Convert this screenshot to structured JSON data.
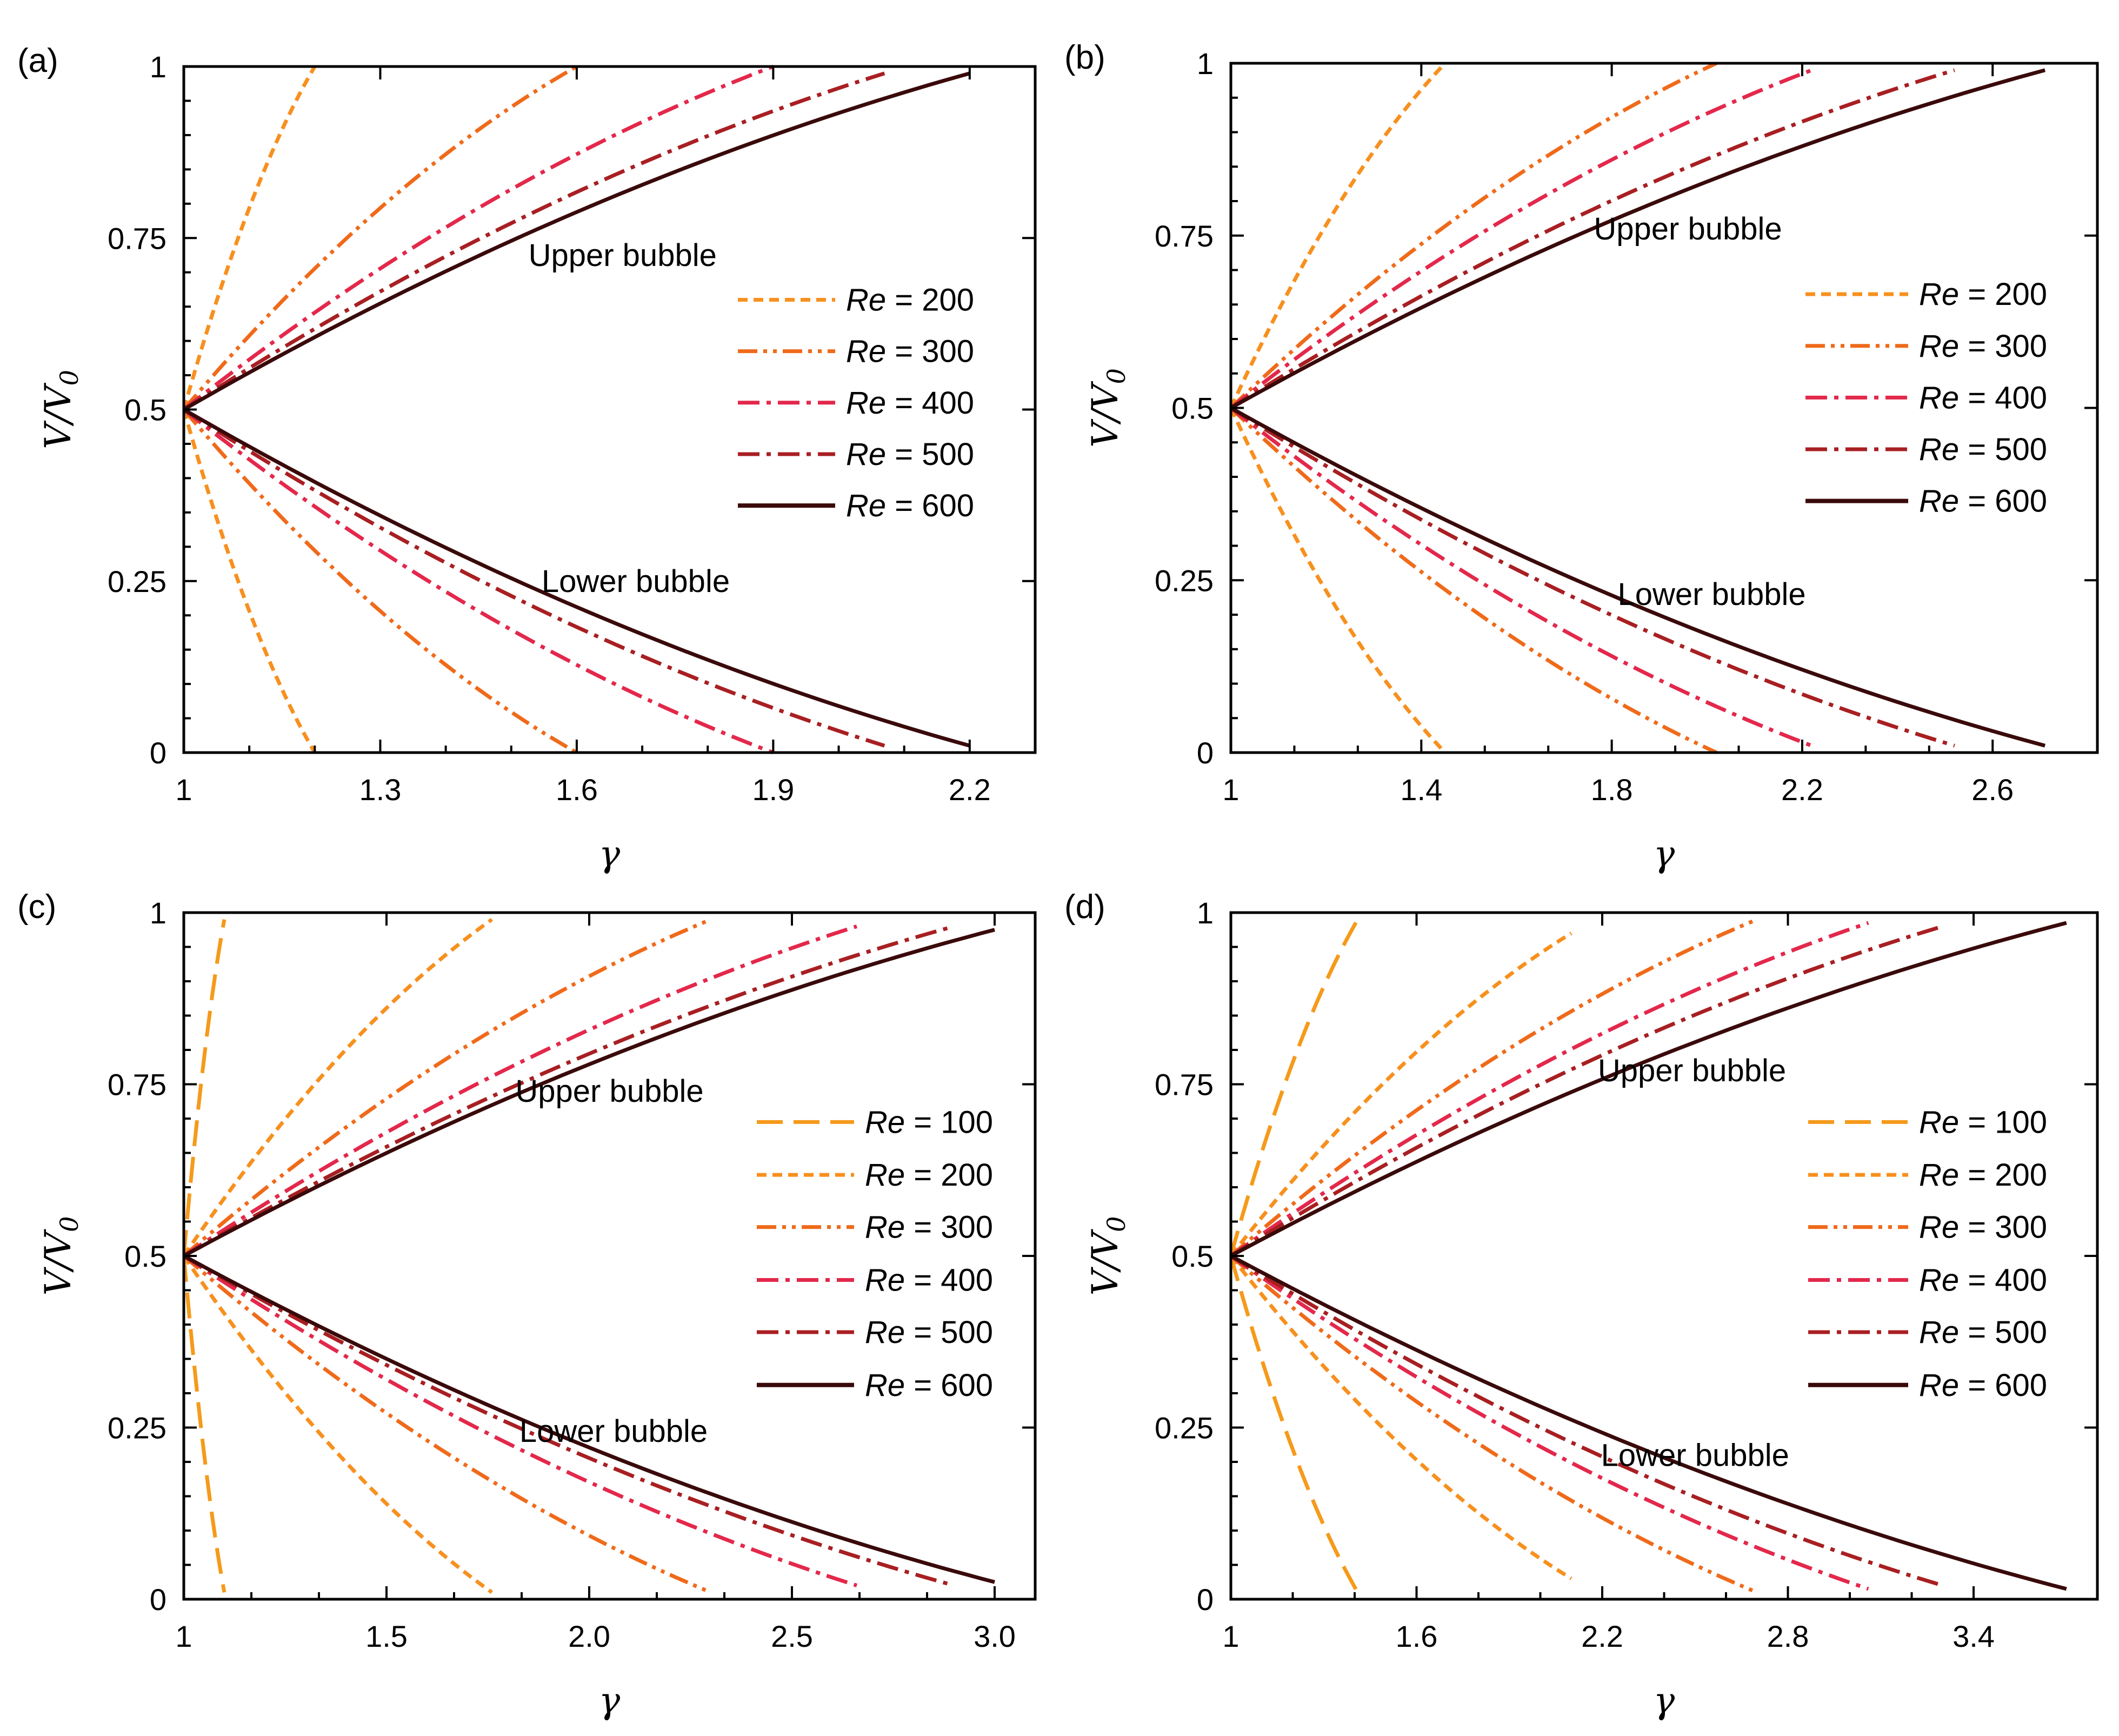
{
  "colors": {
    "Re100": "#f59a1a",
    "Re200": "#f7901e",
    "Re300": "#ef6a1a",
    "Re400": "#e3284b",
    "Re500": "#a81f22",
    "Re600": "#3a0a0a"
  },
  "chart_data": [
    {
      "type": "line",
      "panel_label": "(a)",
      "xlabel": "γ",
      "ylabel": "V/V",
      "ylabel_sub": "0",
      "xlim": [
        1,
        2.3
      ],
      "ylim": [
        0,
        1
      ],
      "xticks": [
        1,
        1.3,
        1.6,
        1.9,
        2.2
      ],
      "xtick_labels": [
        "1",
        "1.3",
        "1.6",
        "1.9",
        "2.2"
      ],
      "yticks": [
        0,
        0.25,
        0.5,
        0.75,
        1
      ],
      "ytick_labels": [
        "0",
        "0.25",
        "0.5",
        "0.75",
        "1"
      ],
      "annotations": [
        {
          "text": "Upper bubble",
          "x": 1.67,
          "y": 0.725
        },
        {
          "text": "Lower bubble",
          "x": 1.69,
          "y": 0.25
        }
      ],
      "legend": {
        "position": "center-right",
        "row_y": [
          0.66,
          0.585,
          0.51,
          0.435,
          0.36
        ]
      },
      "series": [
        {
          "name": "Re = 200",
          "color_key": "Re200",
          "dash": "dash",
          "gamma_end": 1.2,
          "v_end": 1.0
        },
        {
          "name": "Re = 300",
          "color_key": "Re300",
          "dash": "dashdotdot",
          "gamma_end": 1.6,
          "v_end": 1.0
        },
        {
          "name": "Re = 400",
          "color_key": "Re400",
          "dash": "dashdot",
          "gamma_end": 1.9,
          "v_end": 1.0
        },
        {
          "name": "Re = 500",
          "color_key": "Re500",
          "dash": "dashdot",
          "gamma_end": 2.07,
          "v_end": 0.99
        },
        {
          "name": "Re = 600",
          "color_key": "Re600",
          "dash": "solid",
          "gamma_end": 2.2,
          "v_end": 0.99
        }
      ]
    },
    {
      "type": "line",
      "panel_label": "(b)",
      "xlabel": "γ",
      "ylabel": "V/V",
      "ylabel_sub": "0",
      "xlim": [
        1,
        2.82
      ],
      "ylim": [
        0,
        1
      ],
      "xticks": [
        1,
        1.4,
        1.8,
        2.2,
        2.6
      ],
      "xtick_labels": [
        "1",
        "1.4",
        "1.8",
        "2.2",
        "2.6"
      ],
      "yticks": [
        0,
        0.25,
        0.5,
        0.75,
        1
      ],
      "ytick_labels": [
        "0",
        "0.25",
        "0.5",
        "0.75",
        "1"
      ],
      "annotations": [
        {
          "text": "Upper bubble",
          "x": 1.96,
          "y": 0.76
        },
        {
          "text": "Lower bubble",
          "x": 2.01,
          "y": 0.23
        }
      ],
      "legend": {
        "position": "center-right",
        "row_y": [
          0.665,
          0.59,
          0.515,
          0.44,
          0.365
        ]
      },
      "series": [
        {
          "name": "Re = 200",
          "color_key": "Re200",
          "dash": "dash",
          "gamma_end": 1.45,
          "v_end": 1.0
        },
        {
          "name": "Re = 300",
          "color_key": "Re300",
          "dash": "dashdotdot",
          "gamma_end": 2.02,
          "v_end": 1.0
        },
        {
          "name": "Re = 400",
          "color_key": "Re400",
          "dash": "dashdot",
          "gamma_end": 2.22,
          "v_end": 0.99
        },
        {
          "name": "Re = 500",
          "color_key": "Re500",
          "dash": "dashdot",
          "gamma_end": 2.52,
          "v_end": 0.99
        },
        {
          "name": "Re = 600",
          "color_key": "Re600",
          "dash": "solid",
          "gamma_end": 2.71,
          "v_end": 0.99
        }
      ]
    },
    {
      "type": "line",
      "panel_label": "(c)",
      "xlabel": "γ",
      "ylabel": "V/V",
      "ylabel_sub": "0",
      "xlim": [
        1,
        3.1
      ],
      "ylim": [
        0,
        1
      ],
      "xticks": [
        1,
        1.5,
        2.0,
        2.5,
        3.0
      ],
      "xtick_labels": [
        "1",
        "1.5",
        "2.0",
        "2.5",
        "3.0"
      ],
      "yticks": [
        0,
        0.25,
        0.5,
        0.75,
        1
      ],
      "ytick_labels": [
        "0",
        "0.25",
        "0.5",
        "0.75",
        "1"
      ],
      "annotations": [
        {
          "text": "Upper bubble",
          "x": 2.05,
          "y": 0.74
        },
        {
          "text": "Lower bubble",
          "x": 2.06,
          "y": 0.245
        }
      ],
      "legend": {
        "position": "center-right",
        "row_y": [
          0.695,
          0.618,
          0.542,
          0.465,
          0.389,
          0.312
        ]
      },
      "series": [
        {
          "name": "Re = 100",
          "color_key": "Re100",
          "dash": "longdash",
          "gamma_end": 1.1,
          "v_end": 0.99
        },
        {
          "name": "Re = 200",
          "color_key": "Re200",
          "dash": "dash",
          "gamma_end": 1.76,
          "v_end": 0.99
        },
        {
          "name": "Re = 300",
          "color_key": "Re300",
          "dash": "dashdotdot",
          "gamma_end": 2.3,
          "v_end": 0.99
        },
        {
          "name": "Re = 400",
          "color_key": "Re400",
          "dash": "dashdot",
          "gamma_end": 2.66,
          "v_end": 0.98
        },
        {
          "name": "Re = 500",
          "color_key": "Re500",
          "dash": "dashdot",
          "gamma_end": 2.9,
          "v_end": 0.98
        },
        {
          "name": "Re = 600",
          "color_key": "Re600",
          "dash": "solid",
          "gamma_end": 3.0,
          "v_end": 0.975
        }
      ]
    },
    {
      "type": "line",
      "panel_label": "(d)",
      "xlabel": "γ",
      "ylabel": "V/V",
      "ylabel_sub": "0",
      "xlim": [
        1,
        3.8
      ],
      "ylim": [
        0,
        1
      ],
      "xticks": [
        1,
        1.6,
        2.2,
        2.8,
        3.4
      ],
      "xtick_labels": [
        "1",
        "1.6",
        "2.2",
        "2.8",
        "3.4"
      ],
      "yticks": [
        0,
        0.25,
        0.5,
        0.75,
        1
      ],
      "ytick_labels": [
        "0",
        "0.25",
        "0.5",
        "0.75",
        "1"
      ],
      "annotations": [
        {
          "text": "Upper bubble",
          "x": 2.49,
          "y": 0.77
        },
        {
          "text": "Lower bubble",
          "x": 2.5,
          "y": 0.21
        }
      ],
      "legend": {
        "position": "center-right",
        "row_y": [
          0.695,
          0.618,
          0.542,
          0.465,
          0.389,
          0.312
        ]
      },
      "series": [
        {
          "name": "Re = 100",
          "color_key": "Re100",
          "dash": "longdash",
          "gamma_end": 1.41,
          "v_end": 0.99
        },
        {
          "name": "Re = 200",
          "color_key": "Re200",
          "dash": "dash",
          "gamma_end": 2.1,
          "v_end": 0.97
        },
        {
          "name": "Re = 300",
          "color_key": "Re300",
          "dash": "dashdotdot",
          "gamma_end": 2.7,
          "v_end": 0.99
        },
        {
          "name": "Re = 400",
          "color_key": "Re400",
          "dash": "dashdot",
          "gamma_end": 3.06,
          "v_end": 0.985
        },
        {
          "name": "Re = 500",
          "color_key": "Re500",
          "dash": "dashdot",
          "gamma_end": 3.3,
          "v_end": 0.98
        },
        {
          "name": "Re = 600",
          "color_key": "Re600",
          "dash": "solid",
          "gamma_end": 3.7,
          "v_end": 0.985
        }
      ]
    }
  ]
}
